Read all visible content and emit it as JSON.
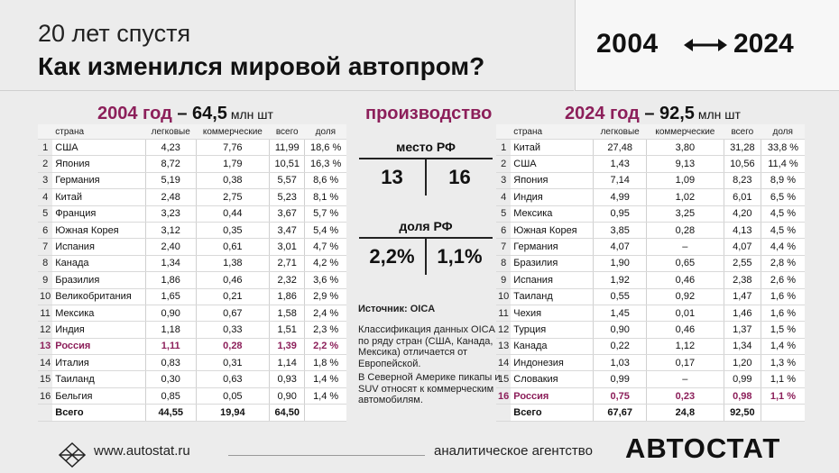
{
  "header": {
    "subtitle": "20 лет спустя",
    "title": "Как изменился мировой автопром?",
    "year_from": "2004",
    "year_to": "2024"
  },
  "left": {
    "title_year": "2004 год",
    "title_total": " – 64,5",
    "title_unit": " млн шт",
    "columns": [
      "страна",
      "легковые",
      "коммерческие",
      "всего",
      "доля"
    ],
    "rows": [
      [
        "1",
        "США",
        "4,23",
        "7,76",
        "11,99",
        "18,6 %"
      ],
      [
        "2",
        "Япония",
        "8,72",
        "1,79",
        "10,51",
        "16,3 %"
      ],
      [
        "3",
        "Германия",
        "5,19",
        "0,38",
        "5,57",
        "8,6 %"
      ],
      [
        "4",
        "Китай",
        "2,48",
        "2,75",
        "5,23",
        "8,1 %"
      ],
      [
        "5",
        "Франция",
        "3,23",
        "0,44",
        "3,67",
        "5,7 %"
      ],
      [
        "6",
        "Южная Корея",
        "3,12",
        "0,35",
        "3,47",
        "5,4 %"
      ],
      [
        "7",
        "Испания",
        "2,40",
        "0,61",
        "3,01",
        "4,7 %"
      ],
      [
        "8",
        "Канада",
        "1,34",
        "1,38",
        "2,71",
        "4,2 %"
      ],
      [
        "9",
        "Бразилия",
        "1,86",
        "0,46",
        "2,32",
        "3,6 %"
      ],
      [
        "10",
        "Великобритания",
        "1,65",
        "0,21",
        "1,86",
        "2,9 %"
      ],
      [
        "11",
        "Мексика",
        "0,90",
        "0,67",
        "1,58",
        "2,4 %"
      ],
      [
        "12",
        "Индия",
        "1,18",
        "0,33",
        "1,51",
        "2,3 %"
      ],
      [
        "13",
        "Россия",
        "1,11",
        "0,28",
        "1,39",
        "2,2 %"
      ],
      [
        "14",
        "Италия",
        "0,83",
        "0,31",
        "1,14",
        "1,8 %"
      ],
      [
        "15",
        "Таиланд",
        "0,30",
        "0,63",
        "0,93",
        "1,4 %"
      ],
      [
        "16",
        "Бельгия",
        "0,85",
        "0,05",
        "0,90",
        "1,4 %"
      ]
    ],
    "highlight_index": 12,
    "total": [
      "",
      "Всего",
      "44,55",
      "19,94",
      "64,50",
      ""
    ]
  },
  "middle": {
    "production": "производство",
    "rank_label": "место РФ",
    "rank_2004": "13",
    "rank_2024": "16",
    "share_label": "доля РФ",
    "share_2004": "2,2%",
    "share_2024": "1,1%",
    "source": "Источник: OICA",
    "note1": "Классификация данных OICA по ряду стран (США, Канада, Мексика) отличается от Европейской.",
    "note2": "В Северной Америке пикапы и SUV относят к коммерческим автомобилям."
  },
  "right": {
    "title_year": "2024 год",
    "title_total": " – 92,5",
    "title_unit": " млн шт",
    "columns": [
      "страна",
      "легковые",
      "коммерческие",
      "всего",
      "доля"
    ],
    "rows": [
      [
        "1",
        "Китай",
        "27,48",
        "3,80",
        "31,28",
        "33,8 %"
      ],
      [
        "2",
        "США",
        "1,43",
        "9,13",
        "10,56",
        "11,4 %"
      ],
      [
        "3",
        "Япония",
        "7,14",
        "1,09",
        "8,23",
        "8,9 %"
      ],
      [
        "4",
        "Индия",
        "4,99",
        "1,02",
        "6,01",
        "6,5 %"
      ],
      [
        "5",
        "Мексика",
        "0,95",
        "3,25",
        "4,20",
        "4,5 %"
      ],
      [
        "6",
        "Южная Корея",
        "3,85",
        "0,28",
        "4,13",
        "4,5 %"
      ],
      [
        "7",
        "Германия",
        "4,07",
        "–",
        "4,07",
        "4,4 %"
      ],
      [
        "8",
        "Бразилия",
        "1,90",
        "0,65",
        "2,55",
        "2,8 %"
      ],
      [
        "9",
        "Испания",
        "1,92",
        "0,46",
        "2,38",
        "2,6 %"
      ],
      [
        "10",
        "Таиланд",
        "0,55",
        "0,92",
        "1,47",
        "1,6 %"
      ],
      [
        "11",
        "Чехия",
        "1,45",
        "0,01",
        "1,46",
        "1,6 %"
      ],
      [
        "12",
        "Турция",
        "0,90",
        "0,46",
        "1,37",
        "1,5 %"
      ],
      [
        "13",
        "Канада",
        "0,22",
        "1,12",
        "1,34",
        "1,4 %"
      ],
      [
        "14",
        "Индонезия",
        "1,03",
        "0,17",
        "1,20",
        "1,3 %"
      ],
      [
        "15",
        "Словакия",
        "0,99",
        "–",
        "0,99",
        "1,1 %"
      ],
      [
        "16",
        "Россия",
        "0,75",
        "0,23",
        "0,98",
        "1,1 %"
      ]
    ],
    "highlight_index": 15,
    "total": [
      "",
      "Всего",
      "67,67",
      "24,8",
      "92,50",
      ""
    ]
  },
  "footer": {
    "site": "www.autostat.ru",
    "agency": "аналитическое агентство",
    "brand": "АВТОСТАТ"
  },
  "colors": {
    "accent": "#8c1f5a",
    "background": "#ececec"
  },
  "icons": {
    "logo": "autostat-logo-icon",
    "arrow": "double-arrow-icon"
  }
}
